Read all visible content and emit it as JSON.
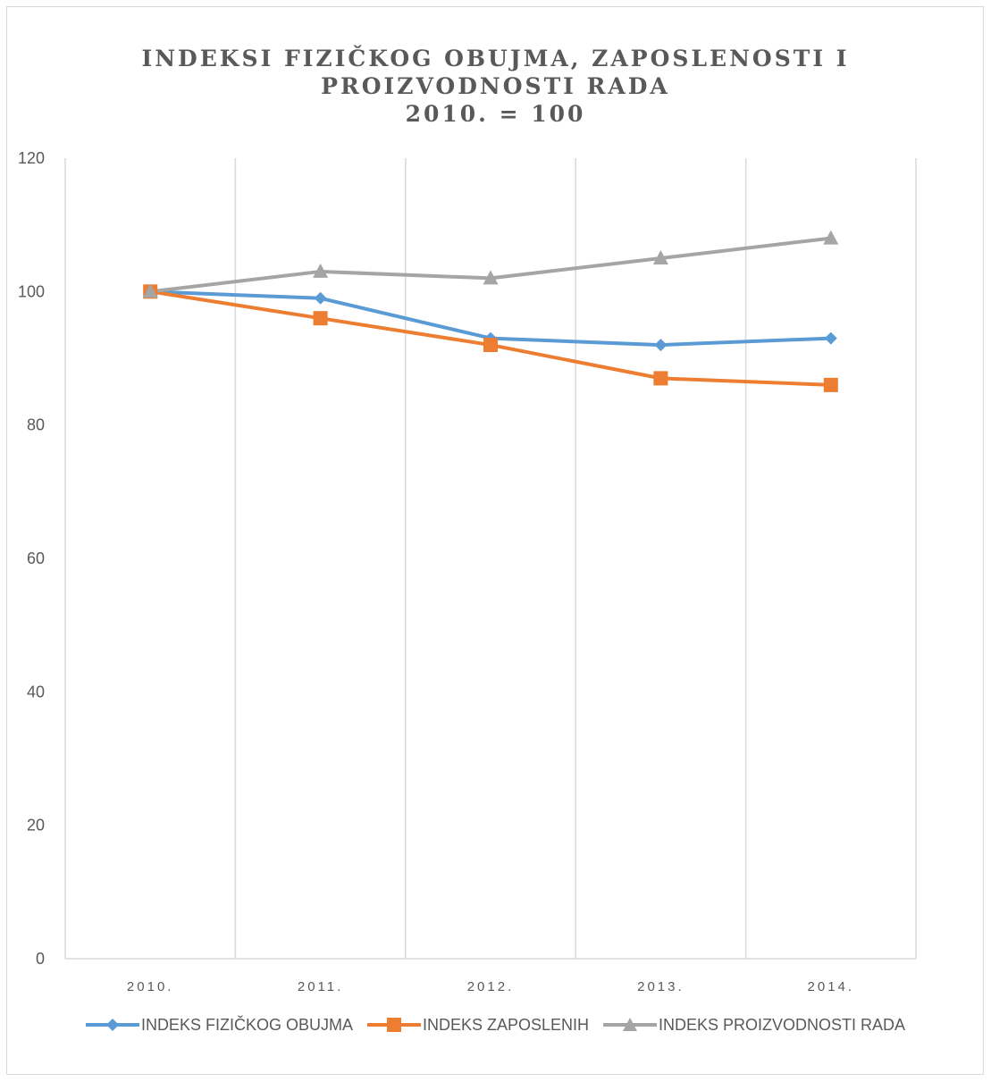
{
  "chart_data": {
    "type": "line",
    "title_lines": [
      "INDEKSI FIZIČKOG OBUJMA, ZAPOSLENOSTI I",
      "PROIZVODNOSTI RADA",
      "2010. = 100"
    ],
    "categories": [
      "2010.",
      "2011.",
      "2012.",
      "2013.",
      "2014."
    ],
    "series": [
      {
        "name": "INDEKS FIZIČKOG OBUJMA",
        "values": [
          100,
          99,
          93,
          92,
          93
        ],
        "color": "#5b9bd5",
        "marker": "diamond"
      },
      {
        "name": "INDEKS ZAPOSLENIH",
        "values": [
          100,
          96,
          92,
          87,
          86
        ],
        "color": "#ed7d31",
        "marker": "square"
      },
      {
        "name": "INDEKS PROIZVODNOSTI RADA",
        "values": [
          100,
          103,
          102,
          105,
          108
        ],
        "color": "#a5a5a5",
        "marker": "triangle"
      }
    ],
    "ylim": [
      0,
      120
    ],
    "yticks": [
      0,
      20,
      40,
      60,
      80,
      100,
      120
    ],
    "xlabel": "",
    "ylabel": "",
    "grid": "vertical",
    "legend": "bottom"
  }
}
